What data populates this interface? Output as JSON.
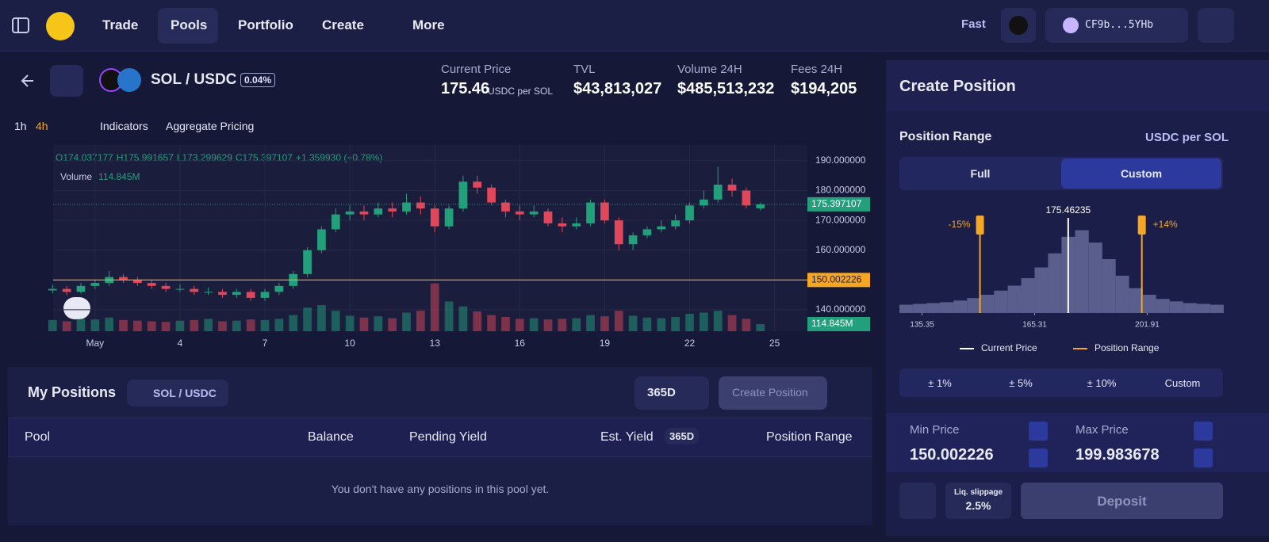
{
  "nav": {
    "items": [
      "Trade",
      "Pools",
      "Portfolio",
      "Create",
      "More"
    ],
    "fast": "Fast",
    "wallet": "CF9b...5YHb"
  },
  "pool_header": {
    "pair": "SOL / USDC",
    "fee": "0.04%",
    "stats": [
      {
        "label": "Current Price",
        "value": "175.46",
        "unit": "USDC per SOL"
      },
      {
        "label": "TVL",
        "value": "$43,813,027"
      },
      {
        "label": "Volume 24H",
        "value": "$485,513,232"
      },
      {
        "label": "Fees 24H",
        "value": "$194,205"
      }
    ]
  },
  "toolbar": {
    "intervals": [
      "1h",
      "4h"
    ],
    "indicators": "Indicators",
    "aggregate": "Aggregate Pricing"
  },
  "chart_data": [
    {
      "type": "candlestick",
      "ohlc_legend": [
        "O174.037177",
        "H175.991657",
        "L173.299629",
        "C175.397107",
        "+1.359930 (+0.78%)"
      ],
      "volume_label": "Volume",
      "volume_marker": {
        "value": 114.845,
        "label": "114.845M"
      },
      "up_color": "#22a07c",
      "down_color": "#e0475b",
      "level_color": "#f5a623",
      "xlim": [
        -0.48,
        26.16
      ],
      "ylim": [
        132.8,
        195.3
      ],
      "volume_lim": [
        0,
        3000
      ],
      "xticks": [
        {
          "value": 1,
          "label": "May"
        },
        4,
        7,
        10,
        13,
        16,
        19,
        22,
        25
      ],
      "yticks": [
        {
          "value": 140,
          "label": "140.000000"
        },
        {
          "value": 160,
          "label": "160.000000"
        },
        {
          "value": 170,
          "label": "170.000000"
        },
        {
          "value": 180,
          "label": "180.000000"
        },
        {
          "value": 190,
          "label": "190.000000"
        }
      ],
      "grid": true,
      "x": [
        -0.5,
        0,
        0.5,
        1,
        1.5,
        2,
        2.5,
        3,
        3.5,
        4,
        4.5,
        5,
        5.5,
        6,
        6.5,
        7,
        7.5,
        8,
        8.5,
        9,
        9.5,
        10,
        10.5,
        11,
        11.5,
        12,
        12.5,
        13,
        13.5,
        14,
        14.5,
        15,
        15.5,
        16,
        16.5,
        17,
        17.5,
        18,
        18.5,
        19,
        19.5,
        20,
        20.5,
        21,
        21.5,
        22,
        22.5,
        23,
        23.5,
        24,
        24.5
      ],
      "open": [
        146.5,
        147,
        146,
        148,
        149,
        151,
        150,
        149,
        148,
        147,
        147,
        146,
        146,
        145,
        146,
        144,
        146,
        148,
        152,
        160,
        167,
        172,
        173,
        172,
        174,
        173,
        176,
        174,
        168,
        174,
        183,
        181,
        176,
        173,
        172,
        173,
        169,
        168,
        169,
        176,
        170,
        162,
        165,
        167,
        168,
        170,
        175,
        177,
        182,
        180,
        174.037177
      ],
      "high": [
        148.5,
        148,
        149,
        150,
        153,
        152,
        151,
        150,
        149,
        148.5,
        148,
        147.5,
        147,
        147,
        147,
        147,
        149,
        153,
        161,
        168,
        174,
        175,
        175,
        176,
        176,
        179,
        178,
        175,
        175,
        185,
        185,
        182,
        177,
        175,
        175,
        174,
        171,
        171,
        177,
        177,
        171,
        166,
        168,
        170,
        172,
        176,
        180,
        188,
        184,
        181,
        175.991657
      ],
      "low": [
        145.5,
        145,
        145.5,
        147,
        148,
        149,
        148,
        147,
        146,
        146,
        145,
        145,
        144,
        144,
        143,
        143,
        145,
        147,
        151,
        159,
        166,
        170,
        170,
        171,
        171,
        172,
        172,
        166,
        167,
        173,
        179,
        175,
        171,
        170,
        171,
        168,
        166,
        167,
        168,
        169,
        160,
        160,
        164,
        166,
        167,
        169,
        174,
        176,
        178,
        174,
        173.299629
      ],
      "close": [
        147,
        146,
        148,
        149,
        151,
        150,
        149,
        148,
        147,
        147,
        146,
        146,
        145,
        146,
        144,
        146,
        148,
        152,
        160,
        167,
        172,
        173,
        172,
        174,
        173,
        176,
        174,
        168,
        174,
        183,
        181,
        176,
        173,
        172,
        173,
        169,
        168,
        169,
        176,
        170,
        162,
        165,
        167,
        168,
        170,
        175,
        177,
        182,
        180,
        175,
        175.397107
      ],
      "volume": [
        180,
        160,
        200,
        190,
        220,
        180,
        170,
        160,
        150,
        170,
        180,
        200,
        160,
        170,
        190,
        180,
        200,
        260,
        380,
        420,
        330,
        250,
        220,
        240,
        210,
        300,
        330,
        770,
        480,
        400,
        320,
        260,
        230,
        200,
        210,
        190,
        200,
        210,
        260,
        240,
        330,
        250,
        220,
        210,
        230,
        280,
        300,
        330,
        260,
        200,
        114.845
      ]
    },
    {
      "type": "histogram",
      "xscale": "log",
      "xlim": [
        130,
        231
      ],
      "ylim": [
        0,
        110
      ],
      "xticks": [
        135.35,
        165.31,
        201.91
      ],
      "bins": [
        130,
        133.2,
        136.4,
        139.7,
        143.1,
        146.6,
        150.2,
        153.8,
        157.6,
        161.4,
        165.3,
        169.3,
        173.4,
        177.6,
        182.0,
        186.4,
        190.9,
        195.5,
        200.3,
        205.1,
        210.1,
        215.2,
        220.5,
        225.8,
        231.3
      ],
      "counts": [
        10,
        11,
        12,
        13,
        15,
        18,
        22,
        27,
        33,
        42,
        55,
        72,
        92,
        100,
        85,
        65,
        45,
        30,
        22,
        17,
        14,
        12,
        11,
        10
      ],
      "color": "#5a5e8c",
      "current_price": 175.46235,
      "current_price_color": "#ffffff",
      "range": [
        150.002226,
        199.983678
      ],
      "range_labels": [
        "-15%",
        "+14%"
      ],
      "range_color": "#f5a623",
      "legend": [
        "Current Price",
        "Position Range"
      ]
    }
  ],
  "positions": {
    "title": "My Positions",
    "filter": "SOL / USDC",
    "period": "365D",
    "create": "Create Position",
    "columns": [
      "Pool",
      "Balance",
      "Pending Yield",
      "Est. Yield",
      "Position Range"
    ],
    "yield_period": "365D",
    "empty": "You don't have any positions in this pool yet."
  },
  "create_position": {
    "title": "Create Position",
    "range_title": "Position Range",
    "unit": "USDC per SOL",
    "modes": [
      "Full",
      "Custom"
    ],
    "presets": [
      "± 1%",
      "± 5%",
      "± 10%",
      "Custom"
    ],
    "min_label": "Min Price",
    "max_label": "Max Price",
    "slippage_label": "Liq. slippage",
    "slippage": "2.5%",
    "deposit": "Deposit"
  }
}
